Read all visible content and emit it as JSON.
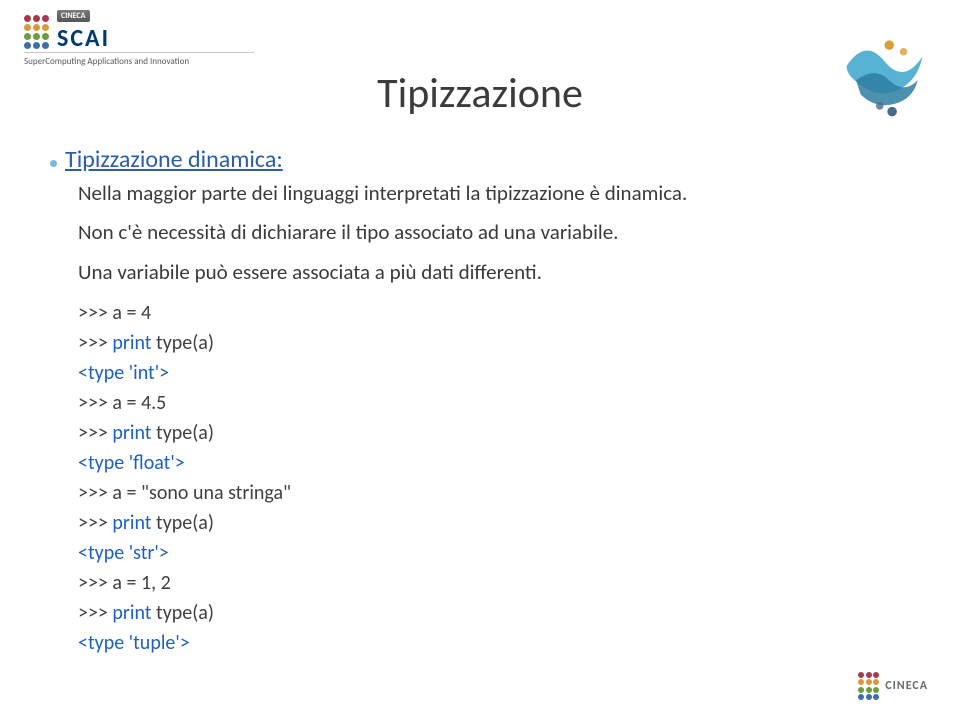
{
  "header": {
    "cineca_badge": "CINECA",
    "scai": "SCAI",
    "subtitle": "SuperComputing Applications and Innovation",
    "dot_colors": [
      "#a8384b",
      "#a8384b",
      "#a8384b",
      "#d99a3a",
      "#d99a3a",
      "#d99a3a",
      "#6b9a3f",
      "#6b9a3f",
      "#6b9a3f",
      "#3d6fa8",
      "#3d6fa8",
      "#3d6fa8"
    ]
  },
  "title": "Tipizzazione",
  "section": {
    "heading": "Tipizzazione dinamica:",
    "para1": "Nella maggior parte dei linguaggi interpretati la tipizzazione è dinamica.",
    "para2": "Non c'è necessità di dichiarare il tipo associato ad una variabile.",
    "para3": "Una variabile può essere associata a più dati differenti."
  },
  "code": {
    "l1_prompt": ">>> a = 4",
    "l2_prompt": ">>> ",
    "l2_print": "print ",
    "l2_rest": "type(a)",
    "l3_out": "<type 'int'>",
    "l4_prompt": ">>> a = 4.5",
    "l5_prompt": ">>> ",
    "l5_print": "print ",
    "l5_rest": "type(a)",
    "l6_out": "<type 'float'>",
    "l7_prompt": ">>> a = \"sono una stringa\"",
    "l8_prompt": ">>> ",
    "l8_print": "print ",
    "l8_rest": "type(a)",
    "l9_out": "<type 'str'>",
    "l10_prompt": ">>> a = 1, 2",
    "l11_prompt": ">>> ",
    "l11_print": "print ",
    "l11_rest": "type(a)",
    "l12_out": "<type 'tuple'>"
  },
  "footer": {
    "cineca": "CINECA",
    "dot_colors": [
      "#a8384b",
      "#a8384b",
      "#a8384b",
      "#d99a3a",
      "#d99a3a",
      "#d99a3a",
      "#6b9a3f",
      "#6b9a3f",
      "#6b9a3f",
      "#3d6fa8",
      "#3d6fa8",
      "#3d6fa8"
    ]
  },
  "deco": {
    "ribbon_color_1": "#3aa6c9",
    "ribbon_color_2": "#2d7ea0",
    "sphere_top": "#d9a038",
    "sphere_bottom": "#4a6a8a"
  }
}
